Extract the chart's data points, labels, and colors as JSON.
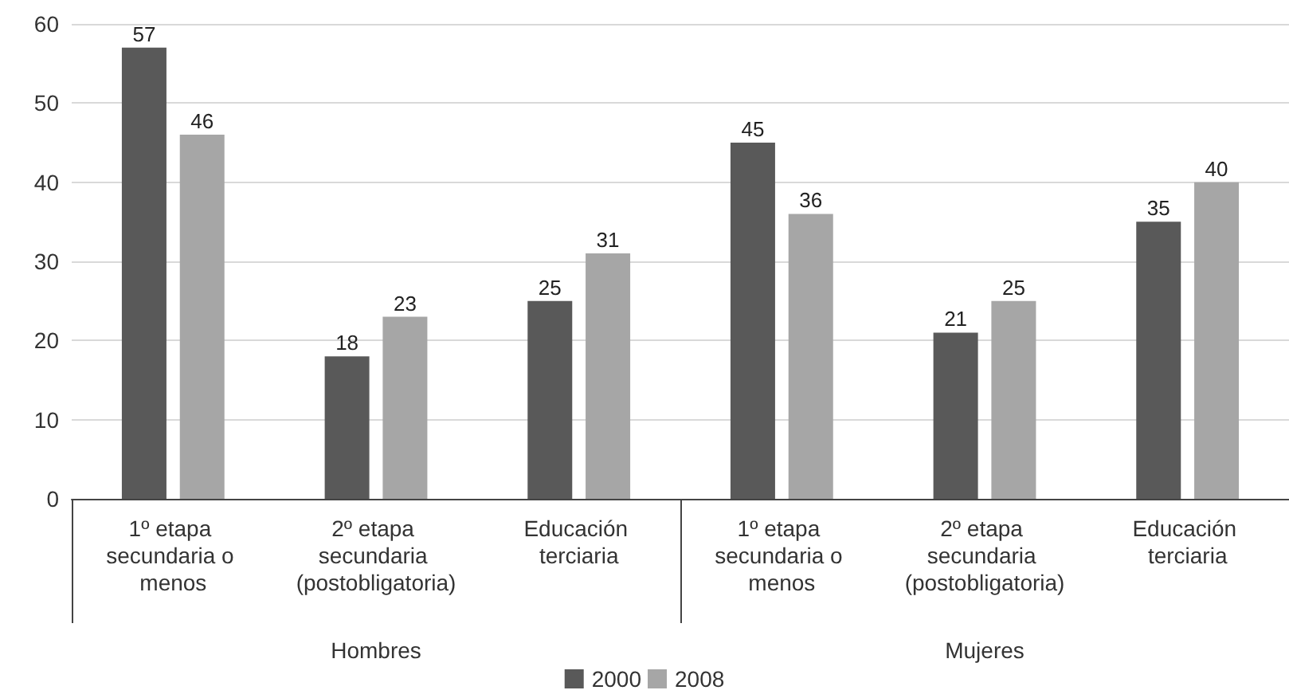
{
  "chart_data": {
    "type": "bar",
    "categories": [
      "1º etapa secundaria o menos",
      "2º etapa secundaria (postobligatoria)",
      "Educación terciaria",
      "1º etapa secundaria o menos",
      "2º etapa secundaria (postobligatoria)",
      "Educación terciaria"
    ],
    "series": [
      {
        "name": "2000",
        "color": "#595959",
        "values": [
          57,
          18,
          25,
          45,
          21,
          35
        ]
      },
      {
        "name": "2008",
        "color": "#a6a6a6",
        "values": [
          46,
          23,
          31,
          36,
          25,
          40
        ]
      }
    ],
    "annotations": [
      "Hombres",
      "Mujeres"
    ],
    "ylim": [
      0,
      60
    ],
    "yticks": [
      0,
      10,
      20,
      30,
      40,
      50,
      60
    ],
    "grid": "y",
    "legend": "bottom",
    "data_labels": true
  }
}
